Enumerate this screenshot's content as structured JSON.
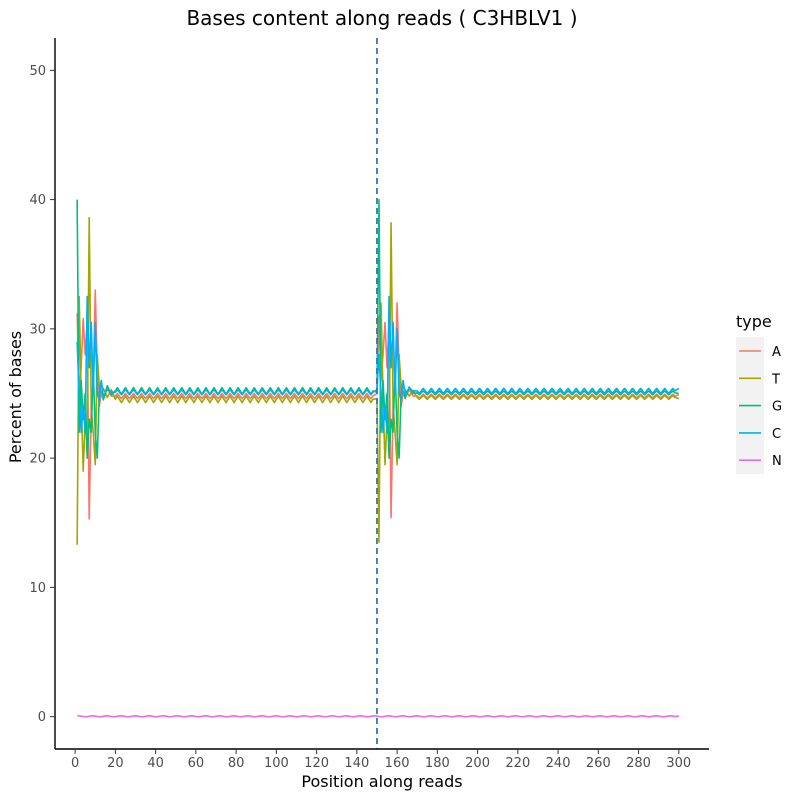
{
  "chart_data": {
    "type": "line",
    "title": "Bases content along reads ( C3HBLV1 )",
    "xlabel": "Position along reads",
    "ylabel": "Percent of bases",
    "xlim": [
      -10,
      315
    ],
    "ylim": [
      -2.5,
      52.5
    ],
    "xticks": [
      0,
      20,
      40,
      60,
      80,
      100,
      120,
      140,
      160,
      180,
      200,
      220,
      240,
      260,
      280,
      300
    ],
    "yticks": [
      0,
      10,
      20,
      30,
      40,
      50
    ],
    "vline": 150,
    "vline_color": "#3a75b0",
    "legend": {
      "title": "type",
      "position": "right"
    },
    "colors": {
      "A": "#f8766d",
      "T": "#a3a500",
      "G": "#00bf7d",
      "C": "#00b0f6",
      "N": "#e76bf3"
    },
    "series": [
      {
        "name": "A",
        "points": [
          [
            1,
            31.2
          ],
          [
            2,
            25
          ],
          [
            3,
            27
          ],
          [
            4,
            30.8
          ],
          [
            5,
            28
          ],
          [
            6,
            30.5
          ],
          [
            7,
            15.3
          ],
          [
            8,
            24
          ],
          [
            9,
            26
          ],
          [
            10,
            33
          ],
          [
            11,
            27
          ],
          [
            12,
            24
          ],
          [
            13,
            25
          ],
          [
            14,
            24.6
          ],
          [
            16,
            25.4
          ],
          [
            18,
            24.8
          ],
          [
            150,
            25
          ],
          [
            151,
            31
          ],
          [
            152,
            26
          ],
          [
            153,
            28
          ],
          [
            154,
            30.5
          ],
          [
            155,
            27
          ],
          [
            156,
            30.4
          ],
          [
            157,
            15.4
          ],
          [
            158,
            24
          ],
          [
            159,
            26
          ],
          [
            160,
            32
          ],
          [
            161,
            27
          ],
          [
            162,
            24
          ],
          [
            163,
            25
          ],
          [
            164,
            24.7
          ],
          [
            166,
            25.3
          ],
          [
            168,
            24.8
          ],
          [
            300,
            24.9
          ]
        ],
        "steady": {
          "from": 20,
          "to": 148,
          "base": 24.8,
          "amp": 0.2,
          "period": 4,
          "from2": 170,
          "to2": 298,
          "base2": 24.8,
          "amp2": 0.15
        }
      },
      {
        "name": "T",
        "points": [
          [
            1,
            13.3
          ],
          [
            2,
            32.5
          ],
          [
            3,
            25
          ],
          [
            4,
            19
          ],
          [
            5,
            23
          ],
          [
            6,
            21
          ],
          [
            7,
            38.6
          ],
          [
            8,
            24
          ],
          [
            9,
            22
          ],
          [
            10,
            19.5
          ],
          [
            11,
            28
          ],
          [
            12,
            25.5
          ],
          [
            13,
            25
          ],
          [
            14,
            25.4
          ],
          [
            16,
            24.7
          ],
          [
            18,
            25.3
          ],
          [
            150,
            24.6
          ],
          [
            151,
            13.5
          ],
          [
            152,
            32
          ],
          [
            153,
            25
          ],
          [
            154,
            19.5
          ],
          [
            155,
            23
          ],
          [
            156,
            21
          ],
          [
            157,
            38.2
          ],
          [
            158,
            24
          ],
          [
            159,
            22
          ],
          [
            160,
            19.5
          ],
          [
            161,
            28
          ],
          [
            162,
            25.5
          ],
          [
            163,
            25
          ],
          [
            164,
            25.3
          ],
          [
            166,
            24.8
          ],
          [
            168,
            25.2
          ],
          [
            300,
            24.6
          ]
        ],
        "steady": {
          "from": 20,
          "to": 148,
          "base": 24.55,
          "amp": 0.25,
          "period": 4,
          "from2": 170,
          "to2": 298,
          "base2": 24.7,
          "amp2": 0.15
        }
      },
      {
        "name": "G",
        "points": [
          [
            1,
            40
          ],
          [
            2,
            22
          ],
          [
            3,
            26
          ],
          [
            4,
            23
          ],
          [
            5,
            25
          ],
          [
            6,
            20
          ],
          [
            7,
            23
          ],
          [
            8,
            22
          ],
          [
            9,
            27
          ],
          [
            10,
            22
          ],
          [
            11,
            20
          ],
          [
            12,
            25
          ],
          [
            13,
            26
          ],
          [
            14,
            24.5
          ],
          [
            16,
            25.6
          ],
          [
            18,
            24.9
          ],
          [
            150,
            25.1
          ],
          [
            151,
            40
          ],
          [
            152,
            22
          ],
          [
            153,
            26
          ],
          [
            154,
            23
          ],
          [
            155,
            25
          ],
          [
            156,
            20
          ],
          [
            157,
            23
          ],
          [
            158,
            22
          ],
          [
            159,
            27
          ],
          [
            160,
            22
          ],
          [
            161,
            20
          ],
          [
            162,
            25
          ],
          [
            163,
            26
          ],
          [
            164,
            24.6
          ],
          [
            166,
            25.5
          ],
          [
            168,
            25
          ],
          [
            300,
            25
          ]
        ],
        "steady": {
          "from": 20,
          "to": 148,
          "base": 25.2,
          "amp": 0.25,
          "period": 4,
          "from2": 170,
          "to2": 298,
          "base2": 25.05,
          "amp2": 0.15
        }
      },
      {
        "name": "C",
        "points": [
          [
            1,
            29
          ],
          [
            2,
            25
          ],
          [
            3,
            22
          ],
          [
            4,
            24
          ],
          [
            5,
            22
          ],
          [
            6,
            32.5
          ],
          [
            7,
            27
          ],
          [
            8,
            30.5
          ],
          [
            9,
            25
          ],
          [
            10,
            30.5
          ],
          [
            11,
            25
          ],
          [
            12,
            24.5
          ],
          [
            13,
            26
          ],
          [
            14,
            24.8
          ],
          [
            16,
            25.3
          ],
          [
            18,
            25.1
          ],
          [
            150,
            25.3
          ],
          [
            151,
            28
          ],
          [
            152,
            25
          ],
          [
            153,
            22
          ],
          [
            154,
            24
          ],
          [
            155,
            22
          ],
          [
            156,
            32.5
          ],
          [
            157,
            27
          ],
          [
            158,
            30.5
          ],
          [
            159,
            25
          ],
          [
            160,
            30
          ],
          [
            161,
            25
          ],
          [
            162,
            24.5
          ],
          [
            163,
            26
          ],
          [
            164,
            24.9
          ],
          [
            166,
            25.4
          ],
          [
            168,
            25.2
          ],
          [
            300,
            25.4
          ]
        ],
        "steady": {
          "from": 20,
          "to": 148,
          "base": 25.1,
          "amp": 0.2,
          "period": 4,
          "from2": 170,
          "to2": 298,
          "base2": 25.2,
          "amp2": 0.2
        }
      },
      {
        "name": "N",
        "points": [
          [
            1,
            0.1
          ],
          [
            2,
            0.05
          ],
          [
            300,
            0.05
          ]
        ],
        "steady": {
          "from": 3,
          "to": 298,
          "base": 0.03,
          "amp": 0.04,
          "period": 7,
          "from2": 0,
          "to2": 0,
          "base2": 0,
          "amp2": 0
        }
      }
    ]
  }
}
